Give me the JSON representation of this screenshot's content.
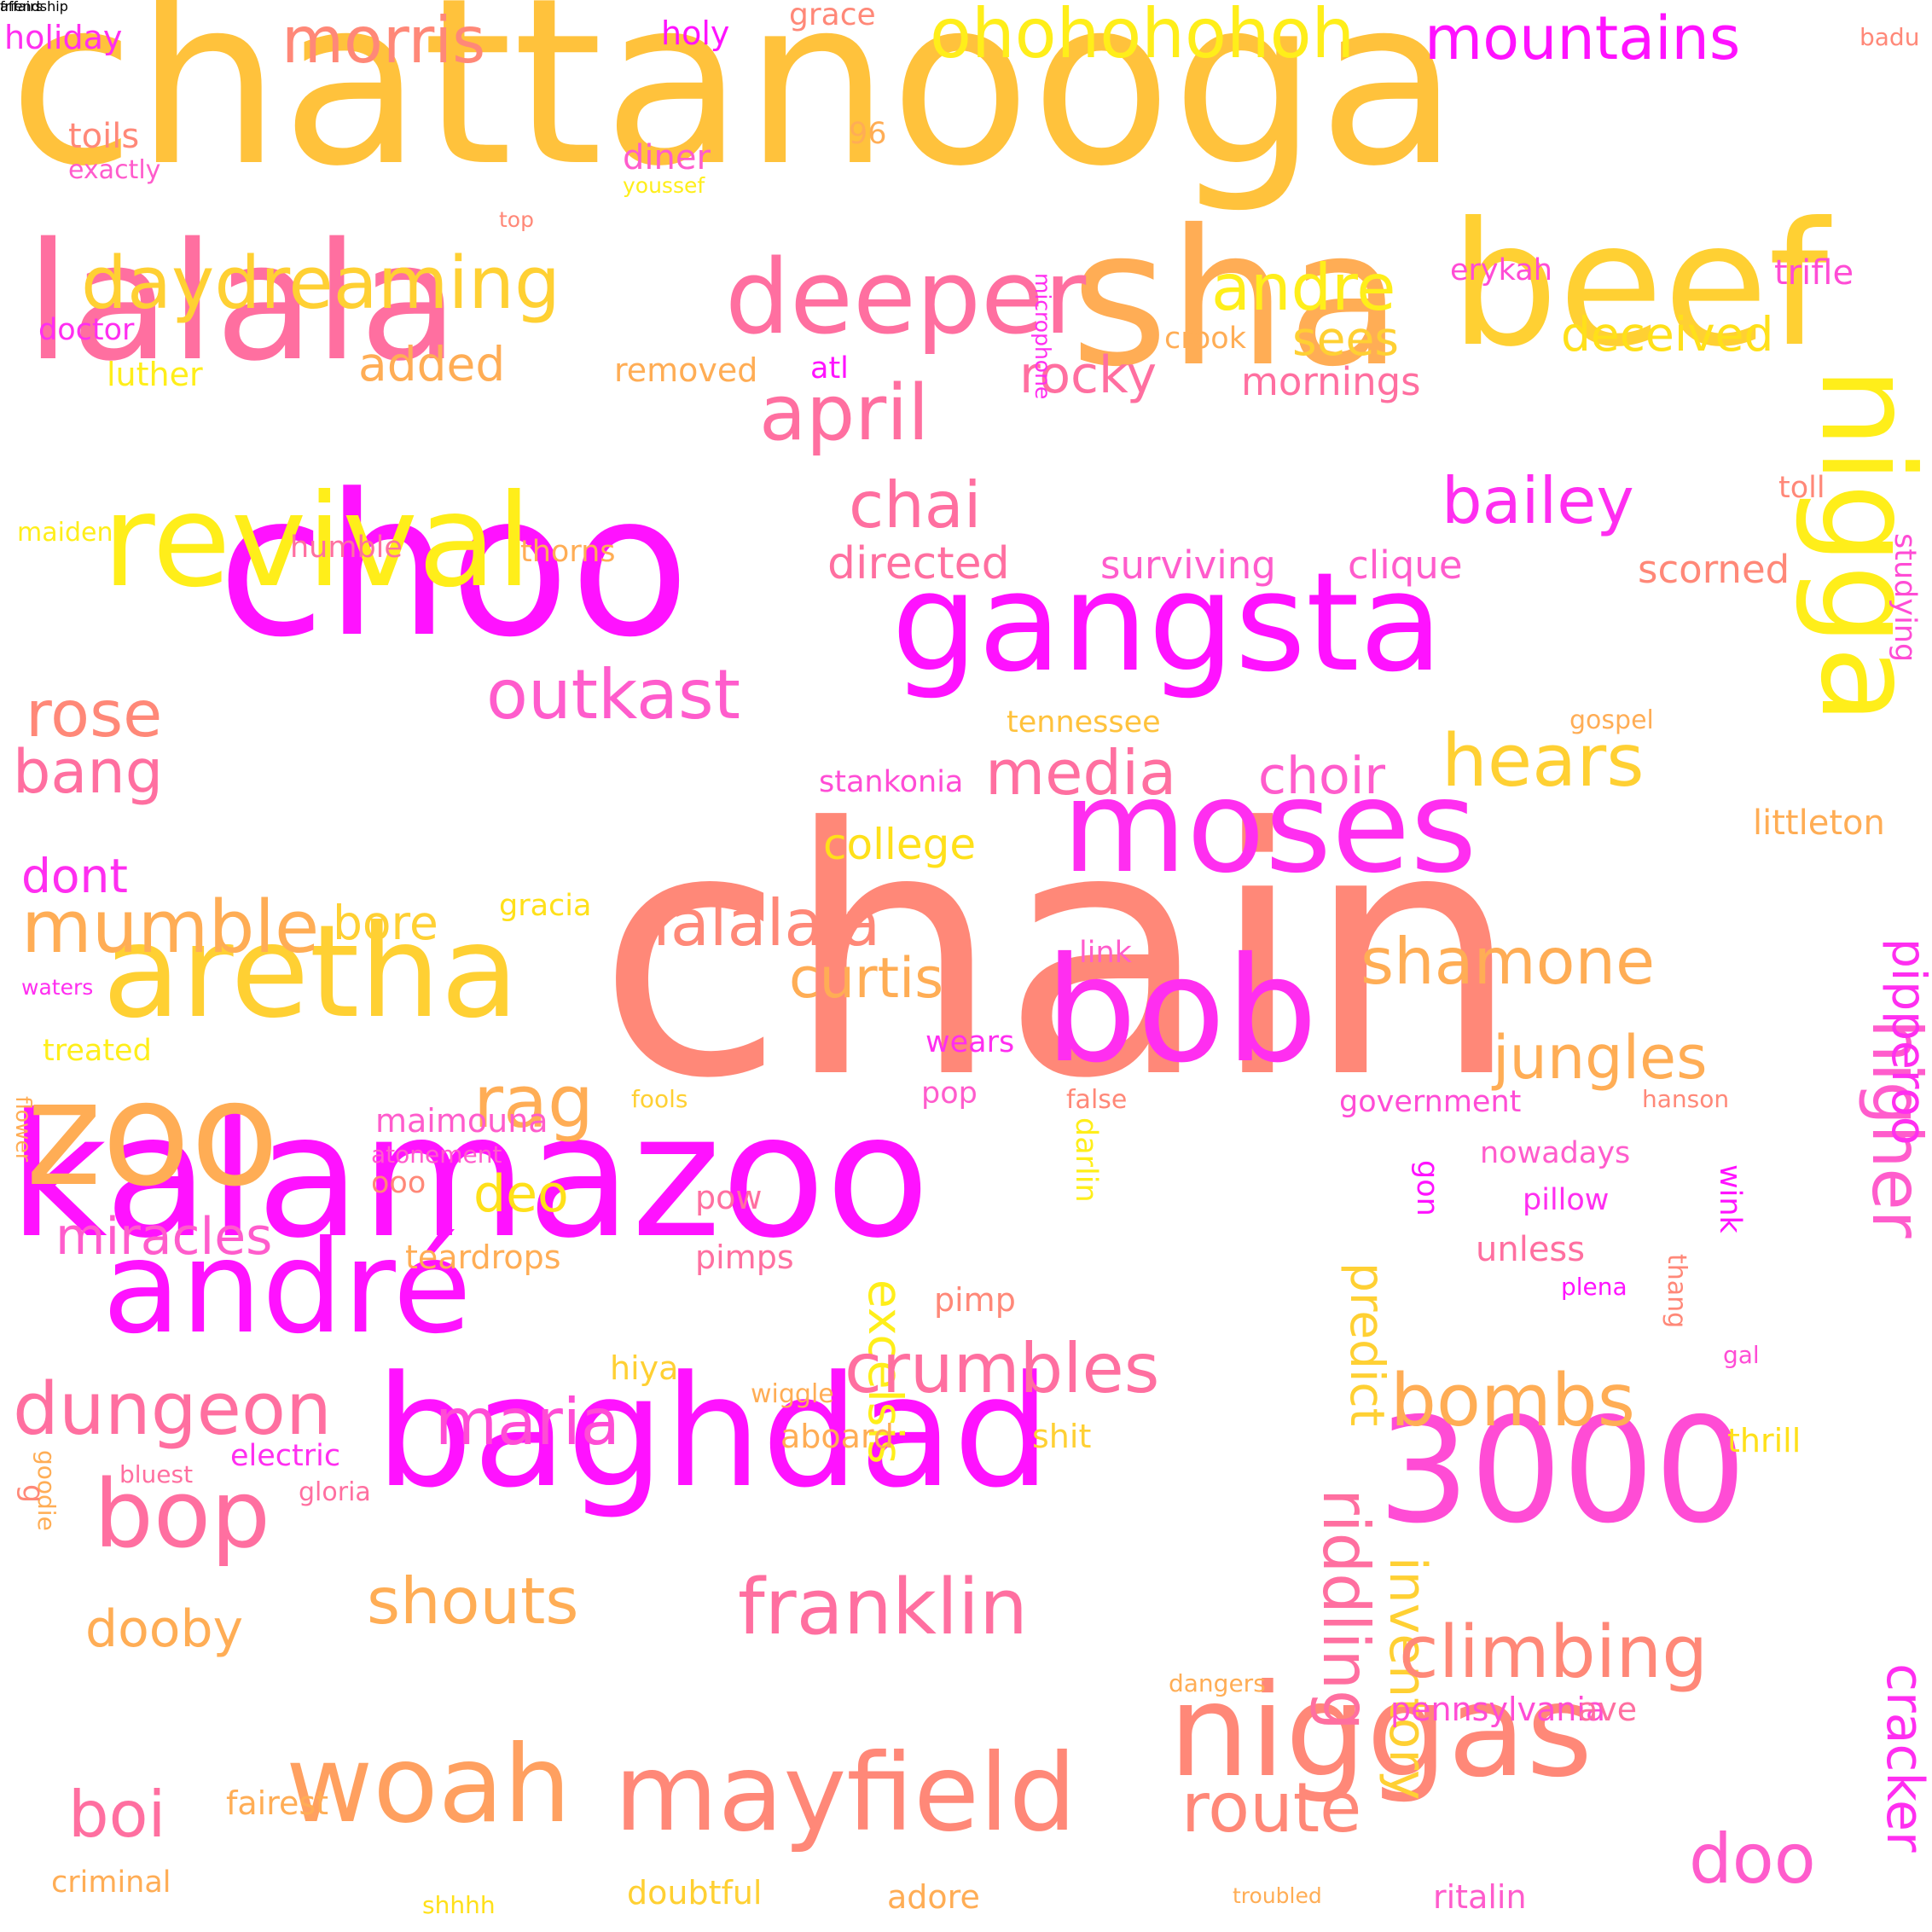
{
  "colors": {
    "magenta": "#ff12ff",
    "pink": "#ff5ccc",
    "rose": "#ff6fa0",
    "salmon": "#ff8878",
    "orange": "#ffad55",
    "amber": "#ffc23c",
    "yellow": "#ffee1a"
  },
  "words": [
    {
      "text": "chattanooga",
      "color": "#ffc23c"
    },
    {
      "text": "chain",
      "color": "#ff8878"
    },
    {
      "text": "choo",
      "color": "#ff12ff"
    },
    {
      "text": "sha",
      "color": "#ffad55"
    },
    {
      "text": "lalala",
      "color": "#ff6fa0"
    },
    {
      "text": "beef",
      "color": "#ffd033"
    },
    {
      "text": "kalamazoo",
      "color": "#ff12ff"
    },
    {
      "text": "gangsta",
      "color": "#ff12ff"
    },
    {
      "text": "revival",
      "color": "#ffee1a"
    },
    {
      "text": "moses",
      "color": "#ff2ef0"
    },
    {
      "text": "aretha",
      "color": "#ffd033"
    },
    {
      "text": "baghdad",
      "color": "#ff12ff"
    },
    {
      "text": "niggas",
      "color": "#ff8878"
    },
    {
      "text": "bob",
      "color": "#ff2ef0"
    },
    {
      "text": "zoo",
      "color": "#ffad55"
    },
    {
      "text": "andré",
      "color": "#ff12ff"
    },
    {
      "text": "3000",
      "color": "#ff4cd5"
    },
    {
      "text": "nigga",
      "color": "#ffee1a"
    },
    {
      "text": "deeper",
      "color": "#ff6fa0"
    },
    {
      "text": "mayfield",
      "color": "#ff8878"
    },
    {
      "text": "woah",
      "color": "#ffa060"
    },
    {
      "text": "daydreaming",
      "color": "#ffd033"
    },
    {
      "text": "ohohohohoh",
      "color": "#ffee1a"
    },
    {
      "text": "mountains",
      "color": "#ff12ff"
    },
    {
      "text": "morris",
      "color": "#ff8878"
    },
    {
      "text": "andre",
      "color": "#ffee1a"
    },
    {
      "text": "april",
      "color": "#ff6fa0"
    },
    {
      "text": "chai",
      "color": "#ff6fa0"
    },
    {
      "text": "bailey",
      "color": "#ff2ef0"
    },
    {
      "text": "outkast",
      "color": "#ff5ccc"
    },
    {
      "text": "rose",
      "color": "#ff8878"
    },
    {
      "text": "bang",
      "color": "#ff6fa0"
    },
    {
      "text": "hears",
      "color": "#ffd033"
    },
    {
      "text": "media",
      "color": "#ff6fa0"
    },
    {
      "text": "choir",
      "color": "#ff5ccc"
    },
    {
      "text": "shamone",
      "color": "#ffad55"
    },
    {
      "text": "jungles",
      "color": "#ffad55"
    },
    {
      "text": "higher",
      "color": "#ff5ccc"
    },
    {
      "text": "pipperoo",
      "color": "#ff2ef0"
    },
    {
      "text": "lalalala",
      "color": "#ff8878"
    },
    {
      "text": "mumble",
      "color": "#ffad55"
    },
    {
      "text": "curtis",
      "color": "#ffad55"
    },
    {
      "text": "rag",
      "color": "#ffad55"
    },
    {
      "text": "deo",
      "color": "#ffe01a"
    },
    {
      "text": "miracles",
      "color": "#ff5ccc"
    },
    {
      "text": "excelsis",
      "color": "#ffee1a"
    },
    {
      "text": "predict",
      "color": "#ffd033"
    },
    {
      "text": "dungeon",
      "color": "#ff6fa0"
    },
    {
      "text": "crumbles",
      "color": "#ff6fa0"
    },
    {
      "text": "bombs",
      "color": "#ffad55"
    },
    {
      "text": "maria",
      "color": "#ff4cd5"
    },
    {
      "text": "bop",
      "color": "#ff6fa0"
    },
    {
      "text": "franklin",
      "color": "#ff6fa0"
    },
    {
      "text": "riddling",
      "color": "#ff6fa0"
    },
    {
      "text": "inventory",
      "color": "#ffd033"
    },
    {
      "text": "climbing",
      "color": "#ff8878"
    },
    {
      "text": "cracker",
      "color": "#ff2ef0"
    },
    {
      "text": "shouts",
      "color": "#ffad55"
    },
    {
      "text": "dooby",
      "color": "#ffad55"
    },
    {
      "text": "boi",
      "color": "#ff6fa0"
    },
    {
      "text": "route",
      "color": "#ff8878"
    },
    {
      "text": "doo",
      "color": "#ff5ccc"
    },
    {
      "text": "rocky",
      "color": "#ff6fa0"
    },
    {
      "text": "added",
      "color": "#ffad55"
    },
    {
      "text": "sees",
      "color": "#ffd033"
    },
    {
      "text": "deceived",
      "color": "#ffe01a"
    },
    {
      "text": "directed",
      "color": "#ff6fa0"
    },
    {
      "text": "surviving",
      "color": "#ff5ccc"
    },
    {
      "text": "clique",
      "color": "#ff5ccc"
    },
    {
      "text": "scorned",
      "color": "#ff8878"
    },
    {
      "text": "college",
      "color": "#ffe01a"
    },
    {
      "text": "dont",
      "color": "#ff2ef0"
    },
    {
      "text": "bore",
      "color": "#ffd033"
    },
    {
      "text": "mornings",
      "color": "#ff6fa0"
    },
    {
      "text": "diner",
      "color": "#ff5ccc"
    },
    {
      "text": "trifle",
      "color": "#ff4cd5"
    },
    {
      "text": "erykah",
      "color": "#ff4cd5"
    },
    {
      "text": "toils",
      "color": "#ff8878"
    },
    {
      "text": "holiday",
      "color": "#ff2ef0"
    },
    {
      "text": "holy",
      "color": "#ff12ff"
    },
    {
      "text": "grace",
      "color": "#ff8878"
    },
    {
      "text": "badu",
      "color": "#ff8878"
    },
    {
      "text": "96",
      "color": "#ffad55"
    },
    {
      "text": "exactly",
      "color": "#ff5ccc"
    },
    {
      "text": "youssef",
      "color": "#ffee1a"
    },
    {
      "text": "top",
      "color": "#ff8878"
    },
    {
      "text": "microphone",
      "color": "#ff2ef0"
    },
    {
      "text": "doctor",
      "color": "#ff2ef0"
    },
    {
      "text": "luther",
      "color": "#ffee1a"
    },
    {
      "text": "removed",
      "color": "#ffad55"
    },
    {
      "text": "atl",
      "color": "#ff12ff"
    },
    {
      "text": "crook",
      "color": "#ffad55"
    },
    {
      "text": "toll",
      "color": "#ff8878"
    },
    {
      "text": "studying",
      "color": "#ff4cd5"
    },
    {
      "text": "maiden",
      "color": "#ffee1a"
    },
    {
      "text": "humble",
      "color": "#ff6fa0"
    },
    {
      "text": "thorns",
      "color": "#ffad55"
    },
    {
      "text": "tennessee",
      "color": "#ffc23c"
    },
    {
      "text": "gospel",
      "color": "#ffad55"
    },
    {
      "text": "stankonia",
      "color": "#ff4cd5"
    },
    {
      "text": "littleton",
      "color": "#ffad55"
    },
    {
      "text": "gracia",
      "color": "#ffe01a"
    },
    {
      "text": "link",
      "color": "#ff5ccc"
    },
    {
      "text": "waters",
      "color": "#ff2ef0"
    },
    {
      "text": "treated",
      "color": "#ffee1a"
    },
    {
      "text": "wears",
      "color": "#ff2ef0"
    },
    {
      "text": "pop",
      "color": "#ff5ccc"
    },
    {
      "text": "fools",
      "color": "#ffd033"
    },
    {
      "text": "false",
      "color": "#ff8878"
    },
    {
      "text": "government",
      "color": "#ff4cd5"
    },
    {
      "text": "hanson",
      "color": "#ff8878"
    },
    {
      "text": "flower",
      "color": "#ffad55"
    },
    {
      "text": "maimouna",
      "color": "#ff5ccc"
    },
    {
      "text": "atonement",
      "color": "#ff5ccc"
    },
    {
      "text": "ooo",
      "color": "#ff8878"
    },
    {
      "text": "darlin",
      "color": "#ffee1a"
    },
    {
      "text": "gon",
      "color": "#ff12ff"
    },
    {
      "text": "nowadays",
      "color": "#ff5ccc"
    },
    {
      "text": "pillow",
      "color": "#ff2ef0"
    },
    {
      "text": "wink",
      "color": "#ff12ff"
    },
    {
      "text": "pow",
      "color": "#ff6fa0"
    },
    {
      "text": "teardrops",
      "color": "#ffad55"
    },
    {
      "text": "pimps",
      "color": "#ff6fa0"
    },
    {
      "text": "unless",
      "color": "#ff6fa0"
    },
    {
      "text": "thang",
      "color": "#ff8878"
    },
    {
      "text": "plena",
      "color": "#ff12ff"
    },
    {
      "text": "pimp",
      "color": "#ff8878"
    },
    {
      "text": "hiya",
      "color": "#ffd033"
    },
    {
      "text": "gal",
      "color": "#ff4cd5"
    },
    {
      "text": "wiggle",
      "color": "#ffad55"
    },
    {
      "text": "aboard",
      "color": "#ffad55"
    },
    {
      "text": "shit",
      "color": "#ffd033"
    },
    {
      "text": "thrill",
      "color": "#ffe01a"
    },
    {
      "text": "bluest",
      "color": "#ff6fa0"
    },
    {
      "text": "electric",
      "color": "#ff2ef0"
    },
    {
      "text": "gloria",
      "color": "#ff6fa0"
    },
    {
      "text": "goodie",
      "color": "#ffad55"
    },
    {
      "text": "g",
      "color": "#ff8878"
    },
    {
      "text": "dangers",
      "color": "#ffad55"
    },
    {
      "text": "pennsylvania",
      "color": "#ff4cd5"
    },
    {
      "text": "ave",
      "color": "#ff6fa0"
    },
    {
      "text": "fairest",
      "color": "#ffad55"
    },
    {
      "text": "criminal",
      "color": "#ffad55"
    },
    {
      "text": "doubtful",
      "color": "#ffd033"
    },
    {
      "text": "adore",
      "color": "#ffad55"
    },
    {
      "text": "shhhh",
      "color": "#ffe01a"
    },
    {
      "text": "troubled",
      "color": "#ffad55"
    },
    {
      "text": "ritalin",
      "color": "#ff5ccc"
    },
    {
      "text": "friendship",
      "color": "#ff12ff"
    },
    {
      "text": "affairs",
      "color": "#ff2ef0"
    }
  ]
}
